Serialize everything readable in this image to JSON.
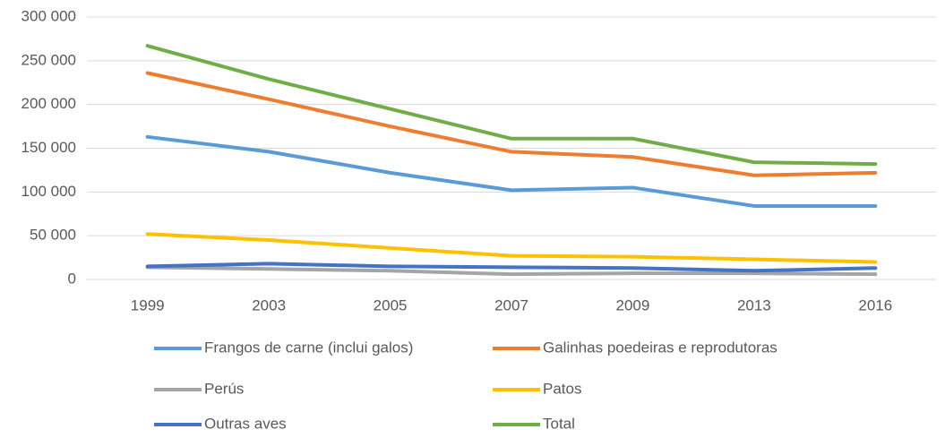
{
  "chart_data": {
    "type": "line",
    "categories": [
      "1999",
      "2003",
      "2005",
      "2007",
      "2009",
      "2013",
      "2016"
    ],
    "series": [
      {
        "name": "Frangos de carne (inclui galos)",
        "color": "#5B9BD5",
        "values": [
          163000,
          146000,
          122000,
          102000,
          105000,
          84000,
          84000
        ]
      },
      {
        "name": "Galinhas poedeiras e reprodutoras",
        "color": "#ED7D31",
        "values": [
          236000,
          206000,
          175000,
          146000,
          140000,
          119000,
          122000
        ]
      },
      {
        "name": "Perús",
        "color": "#A5A5A5",
        "values": [
          14000,
          12000,
          10000,
          6000,
          7000,
          7000,
          6000
        ]
      },
      {
        "name": "Patos",
        "color": "#FFC000",
        "values": [
          52000,
          45000,
          36000,
          27000,
          26000,
          23000,
          20000
        ]
      },
      {
        "name": "Outras aves",
        "color": "#4472C4",
        "values": [
          15000,
          18000,
          15000,
          14000,
          13000,
          10000,
          13000
        ]
      },
      {
        "name": "Total",
        "color": "#70AD47",
        "values": [
          267000,
          229000,
          195000,
          161000,
          161000,
          134000,
          132000
        ]
      }
    ],
    "ylim": [
      0,
      300000
    ],
    "yticks": [
      0,
      {
        "value": 50000,
        "label": "50 000"
      },
      {
        "value": 100000,
        "label": "100 000"
      },
      {
        "value": 150000,
        "label": "150 000"
      },
      {
        "value": 200000,
        "label": "200 000"
      },
      {
        "value": 250000,
        "label": "250 000"
      },
      {
        "value": 300000,
        "label": "300 000"
      }
    ],
    "grid": true
  }
}
